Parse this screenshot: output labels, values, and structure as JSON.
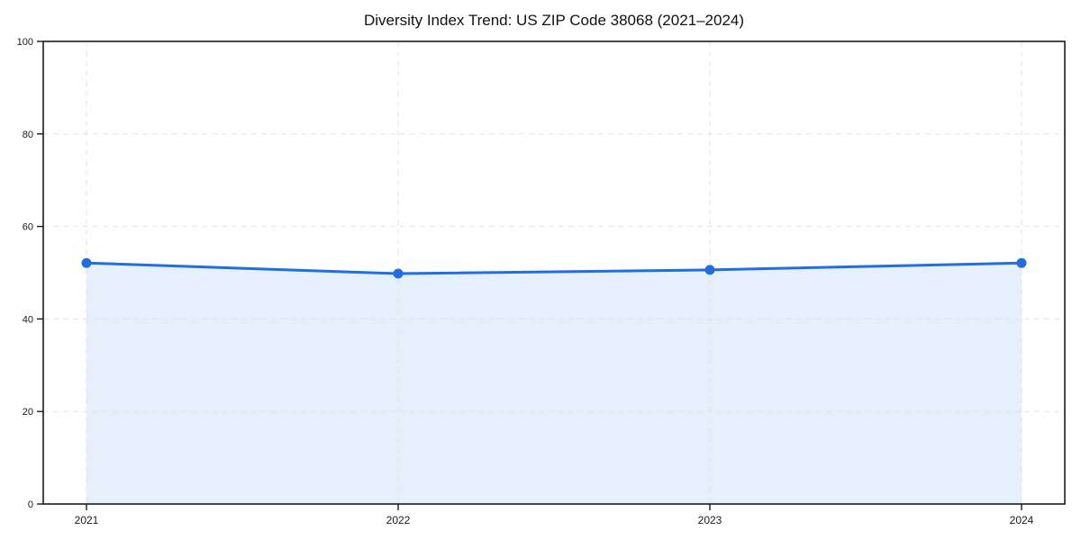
{
  "page": {
    "background": "#ffffff"
  },
  "chart_data": {
    "type": "line",
    "title": "Diversity Index Trend: US ZIP Code 38068 (2021–2024)",
    "x": [
      2021,
      2022,
      2023,
      2024
    ],
    "xticklabels": [
      "2021",
      "2022",
      "2023",
      "2024"
    ],
    "series": [
      {
        "name": "Diversity Index",
        "values": [
          52.1,
          49.8,
          50.6,
          52.1
        ]
      }
    ],
    "xlabel": "",
    "ylabel": "",
    "ylim": [
      0,
      100
    ],
    "yticks": [
      0,
      20,
      40,
      60,
      80,
      100
    ],
    "grid": true,
    "grid_style": "dashed",
    "legend_position": "none",
    "colors": {
      "line": "#1f6fe0",
      "marker": "#1f6fe0",
      "fill": "#1f6fe0",
      "fill_opacity": 0.11,
      "grid": "#e3e3e3",
      "frame": "#1a1a1a",
      "tick_label": "#1a1a1a",
      "title": "#111111"
    }
  }
}
